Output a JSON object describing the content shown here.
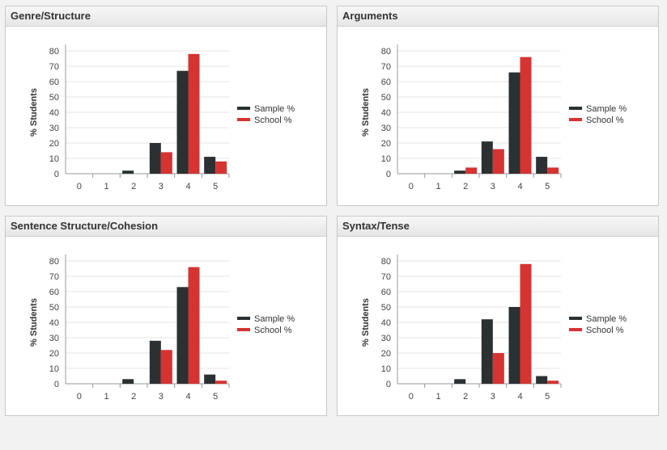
{
  "colors": {
    "sample": "#2b3132",
    "school": "#d63333",
    "grid": "#e4e4e4",
    "axis": "#999999"
  },
  "chart_data": [
    {
      "type": "bar",
      "title": "Genre/Structure",
      "ylabel": "% Students",
      "categories": [
        "0",
        "1",
        "2",
        "3",
        "4",
        "5"
      ],
      "ylim": [
        0,
        80
      ],
      "yticks": [
        0,
        10,
        20,
        30,
        40,
        50,
        60,
        70,
        80
      ],
      "legend": "right",
      "series": [
        {
          "name": "Sample %",
          "values": [
            0,
            0,
            2,
            20,
            67,
            11
          ]
        },
        {
          "name": "School %",
          "values": [
            0,
            0,
            0,
            14,
            78,
            8
          ]
        }
      ]
    },
    {
      "type": "bar",
      "title": "Arguments",
      "ylabel": "% Students",
      "categories": [
        "0",
        "1",
        "2",
        "3",
        "4",
        "5"
      ],
      "ylim": [
        0,
        80
      ],
      "yticks": [
        0,
        10,
        20,
        30,
        40,
        50,
        60,
        70,
        80
      ],
      "legend": "right",
      "series": [
        {
          "name": "Sample %",
          "values": [
            0,
            0,
            2,
            21,
            66,
            11
          ]
        },
        {
          "name": "School %",
          "values": [
            0,
            0,
            4,
            16,
            76,
            4
          ]
        }
      ]
    },
    {
      "type": "bar",
      "title": "Sentence Structure/Cohesion",
      "ylabel": "% Students",
      "categories": [
        "0",
        "1",
        "2",
        "3",
        "4",
        "5"
      ],
      "ylim": [
        0,
        80
      ],
      "yticks": [
        0,
        10,
        20,
        30,
        40,
        50,
        60,
        70,
        80
      ],
      "legend": "right",
      "series": [
        {
          "name": "Sample %",
          "values": [
            0,
            0,
            3,
            28,
            63,
            6
          ]
        },
        {
          "name": "School %",
          "values": [
            0,
            0,
            0,
            22,
            76,
            2
          ]
        }
      ]
    },
    {
      "type": "bar",
      "title": "Syntax/Tense",
      "ylabel": "% Students",
      "categories": [
        "0",
        "1",
        "2",
        "3",
        "4",
        "5"
      ],
      "ylim": [
        0,
        80
      ],
      "yticks": [
        0,
        10,
        20,
        30,
        40,
        50,
        60,
        70,
        80
      ],
      "legend": "right",
      "series": [
        {
          "name": "Sample %",
          "values": [
            0,
            0,
            3,
            42,
            50,
            5
          ]
        },
        {
          "name": "School %",
          "values": [
            0,
            0,
            0,
            20,
            78,
            2
          ]
        }
      ]
    }
  ]
}
